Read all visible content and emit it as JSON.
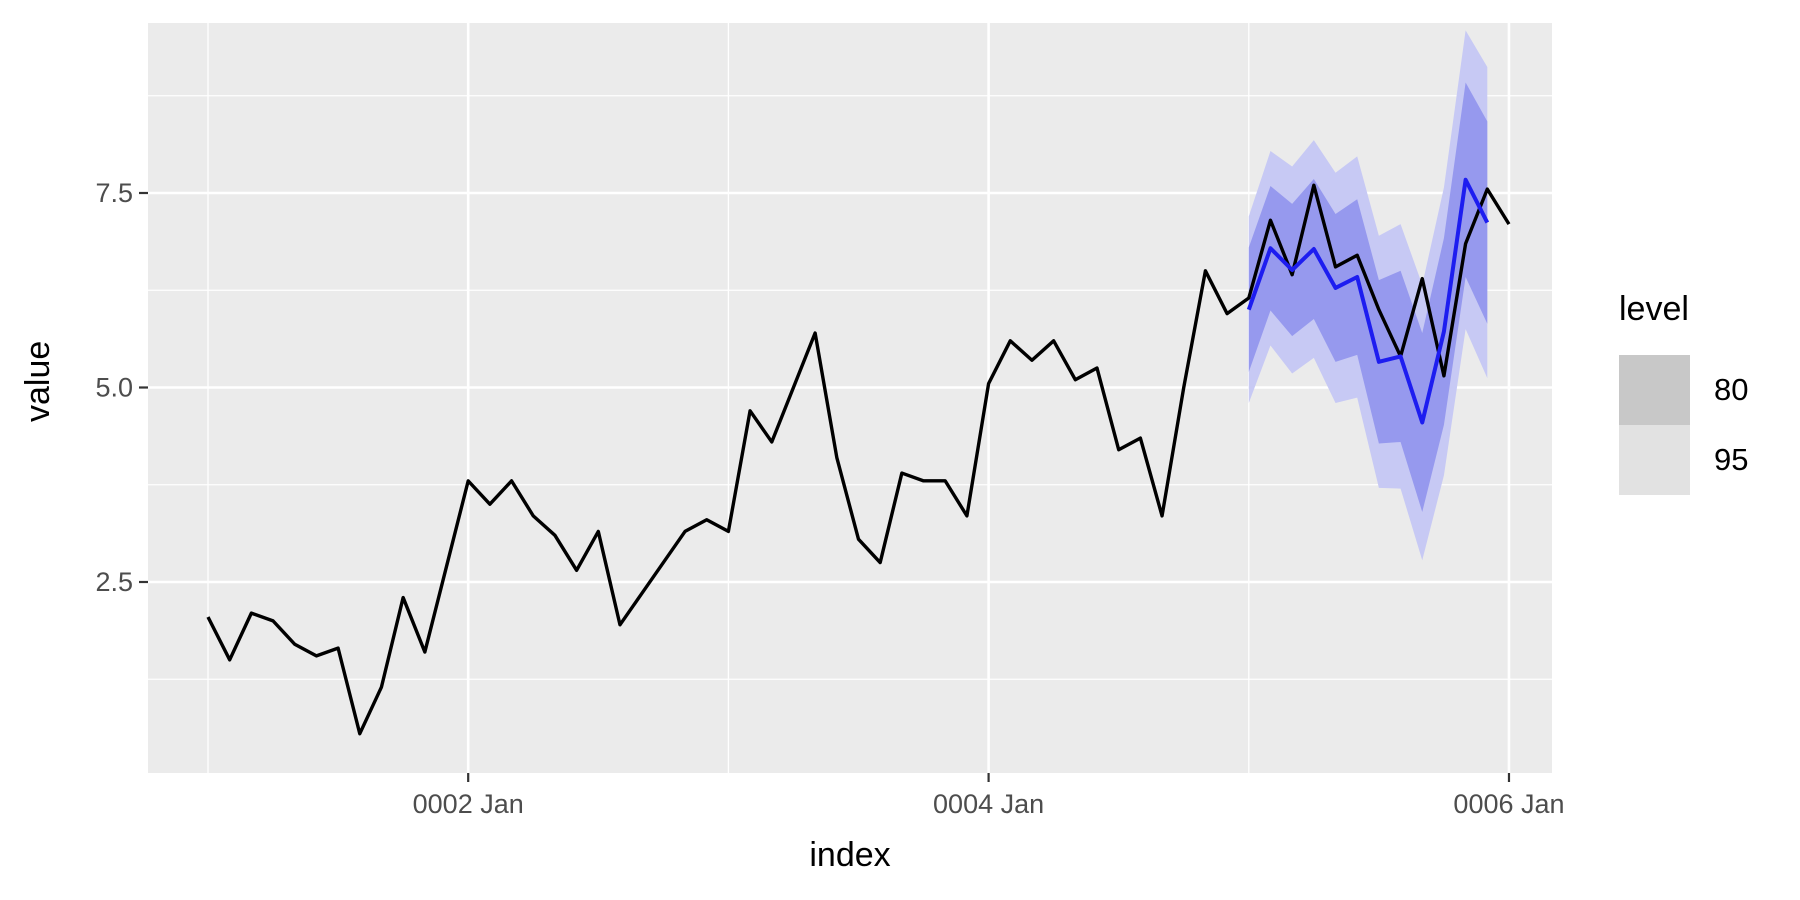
{
  "chart_data": {
    "type": "line",
    "title": "",
    "xlabel": "index",
    "ylabel": "value",
    "x_tick_labels": [
      "0002 Jan",
      "0004 Jan",
      "0006 Jan"
    ],
    "y_tick_labels": [
      "2.5",
      "5.0",
      "7.5"
    ],
    "y_tick_values": [
      2.5,
      5.0,
      7.5
    ],
    "x_major_months": [
      12,
      36,
      60
    ],
    "x_minor_months": [
      0,
      24,
      48
    ],
    "y_minor_values": [
      1.25,
      3.75,
      6.25,
      8.75
    ],
    "ylim": [
      0.05,
      9.7
    ],
    "x_range_label": "0001 Jan to 0006 Jan, monthly",
    "grid": true,
    "legend_position": "right",
    "panel_bg": "#ebebeb",
    "grid_color": "#ffffff",
    "tick_text_color": "#4d4d4d",
    "tick_mark_color": "#333333",
    "series": [
      {
        "name": "actual",
        "color": "#000000",
        "start_month": 0,
        "values": [
          2.05,
          1.5,
          2.1,
          2.0,
          1.7,
          1.55,
          1.65,
          0.55,
          1.15,
          2.3,
          1.6,
          2.7,
          3.8,
          3.5,
          3.8,
          3.35,
          3.1,
          2.65,
          3.15,
          1.95,
          2.35,
          2.75,
          3.15,
          3.3,
          3.15,
          4.7,
          4.3,
          5.0,
          5.7,
          4.1,
          3.05,
          2.75,
          3.9,
          3.8,
          3.8,
          3.35,
          5.05,
          5.6,
          5.35,
          5.6,
          5.1,
          5.25,
          4.2,
          4.35,
          3.35,
          5.0,
          6.5,
          5.95,
          6.15,
          7.15,
          6.45,
          7.6,
          6.55,
          6.7,
          6.0,
          5.4,
          6.4,
          5.15,
          6.85,
          7.55,
          7.1
        ]
      },
      {
        "name": "forecast-mean",
        "color": "#1d1df0",
        "start_month": 48,
        "values": [
          6.0,
          6.79,
          6.51,
          6.78,
          6.28,
          6.42,
          5.33,
          5.4,
          4.55,
          5.72,
          7.67,
          7.12
        ]
      }
    ],
    "intervals": {
      "start_month": 48,
      "level80": {
        "fill": "#9699ee",
        "hi": [
          6.8,
          7.59,
          7.36,
          7.68,
          7.23,
          7.42,
          6.38,
          6.5,
          5.7,
          6.92,
          8.92,
          8.42
        ],
        "lo": [
          5.2,
          5.99,
          5.66,
          5.88,
          5.33,
          5.42,
          4.28,
          4.3,
          3.4,
          4.52,
          6.42,
          5.82
        ]
      },
      "level95": {
        "fill": "#c7c9f4",
        "hi": [
          7.2,
          8.04,
          7.84,
          8.18,
          7.76,
          7.97,
          6.95,
          7.1,
          6.32,
          7.57,
          9.59,
          9.12
        ],
        "lo": [
          4.8,
          5.54,
          5.18,
          5.38,
          4.8,
          4.87,
          3.71,
          3.7,
          2.78,
          3.87,
          5.75,
          5.12
        ]
      }
    },
    "legend": {
      "title": "level",
      "items": [
        {
          "label": "80",
          "swatch": "#c8c8c8"
        },
        {
          "label": "95",
          "swatch": "#e2e2e2"
        }
      ]
    }
  }
}
